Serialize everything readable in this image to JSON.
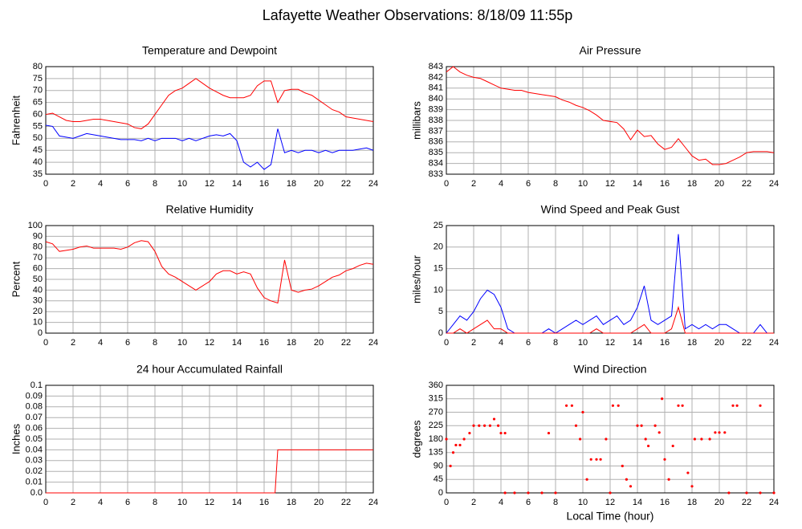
{
  "title": "Lafayette Weather Observations: 8/18/09 11:55p",
  "chart_data": [
    {
      "type": "line",
      "title": "Temperature and Dewpoint",
      "ylabel": "Fahrenheit",
      "x": [
        0,
        0.5,
        1,
        1.5,
        2,
        2.5,
        3,
        3.5,
        4,
        4.5,
        5,
        5.5,
        6,
        6.5,
        7,
        7.5,
        8,
        8.5,
        9,
        9.5,
        10,
        10.5,
        11,
        11.5,
        12,
        12.5,
        13,
        13.5,
        14,
        14.5,
        15,
        15.5,
        16,
        16.5,
        17,
        17.5,
        18,
        18.5,
        19,
        19.5,
        20,
        20.5,
        21,
        21.5,
        22,
        22.5,
        23,
        23.5,
        24
      ],
      "series": [
        {
          "color": "#ff0000",
          "values": [
            60,
            60.5,
            59,
            57.5,
            57,
            57,
            57.5,
            58,
            58,
            57.5,
            57,
            56.5,
            56,
            54.5,
            54,
            56,
            60,
            64,
            68,
            70,
            71,
            73,
            75,
            73,
            71,
            69.5,
            68,
            67,
            67,
            67,
            68,
            72,
            74,
            74,
            65,
            70,
            70.5,
            70.5,
            69,
            68,
            66,
            64,
            62,
            61,
            59,
            58.5,
            58,
            57.5,
            57
          ]
        },
        {
          "color": "#0000ff",
          "values": [
            55.5,
            55,
            51,
            50.5,
            50,
            51,
            52,
            51.5,
            51,
            50.5,
            50,
            49.5,
            49.5,
            49.5,
            49,
            50,
            49,
            50,
            50,
            50,
            49,
            50,
            49,
            50,
            51,
            51.5,
            51,
            52,
            49,
            40,
            38,
            40,
            37,
            39,
            54,
            44,
            45,
            44,
            45,
            45,
            44,
            45,
            44,
            45,
            45,
            45,
            45.5,
            46,
            45
          ]
        }
      ],
      "xlim": [
        0,
        24
      ],
      "xticks": [
        0,
        2,
        4,
        6,
        8,
        10,
        12,
        14,
        16,
        18,
        20,
        22,
        24
      ],
      "ylim": [
        35,
        80
      ],
      "yticks": [
        35,
        40,
        45,
        50,
        55,
        60,
        65,
        70,
        75,
        80
      ],
      "grid": true
    },
    {
      "type": "line",
      "title": "Air Pressure",
      "ylabel": "millibars",
      "x": [
        0,
        0.5,
        1,
        1.5,
        2,
        2.5,
        3,
        3.5,
        4,
        4.5,
        5,
        5.5,
        6,
        6.5,
        7,
        7.5,
        8,
        8.5,
        9,
        9.5,
        10,
        10.5,
        11,
        11.5,
        12,
        12.5,
        13,
        13.5,
        14,
        14.5,
        15,
        15.5,
        16,
        16.5,
        17,
        17.5,
        18,
        18.5,
        19,
        19.5,
        20,
        20.5,
        21,
        21.5,
        22,
        22.5,
        23,
        23.5,
        24
      ],
      "series": [
        {
          "color": "#ff0000",
          "values": [
            842.5,
            843,
            842.5,
            842.2,
            842,
            841.9,
            841.6,
            841.3,
            841,
            840.9,
            840.8,
            840.8,
            840.6,
            840.5,
            840.4,
            840.3,
            840.2,
            839.9,
            839.7,
            839.4,
            839.2,
            838.9,
            838.5,
            838,
            837.9,
            837.8,
            837.2,
            836.2,
            837.1,
            836.5,
            836.6,
            835.8,
            835.3,
            835.5,
            836.3,
            835.5,
            834.7,
            834.3,
            834.4,
            833.9,
            833.9,
            834,
            834.3,
            834.6,
            835,
            835.1,
            835.1,
            835.1,
            835
          ]
        }
      ],
      "xlim": [
        0,
        24
      ],
      "xticks": [
        0,
        2,
        4,
        6,
        8,
        10,
        12,
        14,
        16,
        18,
        20,
        22,
        24
      ],
      "ylim": [
        833,
        843
      ],
      "yticks": [
        833,
        834,
        835,
        836,
        837,
        838,
        839,
        840,
        841,
        842,
        843
      ],
      "grid": true
    },
    {
      "type": "line",
      "title": "Relative Humidity",
      "ylabel": "Percent",
      "x": [
        0,
        0.5,
        1,
        1.5,
        2,
        2.5,
        3,
        3.5,
        4,
        4.5,
        5,
        5.5,
        6,
        6.5,
        7,
        7.5,
        8,
        8.5,
        9,
        9.5,
        10,
        10.5,
        11,
        11.5,
        12,
        12.5,
        13,
        13.5,
        14,
        14.5,
        15,
        15.5,
        16,
        16.5,
        17,
        17.5,
        18,
        18.5,
        19,
        19.5,
        20,
        20.5,
        21,
        21.5,
        22,
        22.5,
        23,
        23.5,
        24
      ],
      "series": [
        {
          "color": "#ff0000",
          "values": [
            85,
            83,
            76,
            77,
            78,
            80,
            81,
            79,
            79,
            79,
            79,
            78,
            80,
            84,
            86,
            85,
            76,
            62,
            55,
            52,
            48,
            44,
            40,
            44,
            48,
            55,
            58,
            58,
            55,
            57,
            55,
            42,
            33,
            30,
            28,
            68,
            40,
            38,
            40,
            41,
            44,
            48,
            52,
            54,
            58,
            60,
            63,
            65,
            64
          ]
        }
      ],
      "xlim": [
        0,
        24
      ],
      "xticks": [
        0,
        2,
        4,
        6,
        8,
        10,
        12,
        14,
        16,
        18,
        20,
        22,
        24
      ],
      "ylim": [
        0,
        100
      ],
      "yticks": [
        0,
        10,
        20,
        30,
        40,
        50,
        60,
        70,
        80,
        90,
        100
      ],
      "grid": true
    },
    {
      "type": "line",
      "title": "Wind Speed and Peak Gust",
      "ylabel": "miles/hour",
      "x": [
        0,
        0.5,
        1,
        1.5,
        2,
        2.5,
        3,
        3.5,
        4,
        4.5,
        5,
        5.5,
        6,
        6.5,
        7,
        7.5,
        8,
        8.5,
        9,
        9.5,
        10,
        10.5,
        11,
        11.5,
        12,
        12.5,
        13,
        13.5,
        14,
        14.5,
        15,
        15.5,
        16,
        16.5,
        17,
        17.5,
        18,
        18.5,
        19,
        19.5,
        20,
        20.5,
        21,
        21.5,
        22,
        22.5,
        23,
        23.5,
        24
      ],
      "series": [
        {
          "color": "#0000ff",
          "values": [
            0,
            2,
            4,
            3,
            5,
            8,
            10,
            9,
            6,
            1,
            0,
            0,
            0,
            0,
            0,
            1,
            0,
            1,
            2,
            3,
            2,
            3,
            4,
            2,
            3,
            4,
            2,
            3,
            6,
            11,
            3,
            2,
            3,
            4,
            23,
            1,
            2,
            1,
            2,
            1,
            2,
            2,
            1,
            0,
            0,
            0,
            2,
            0,
            0
          ]
        },
        {
          "color": "#ff0000",
          "values": [
            0,
            0,
            1,
            0,
            1,
            2,
            3,
            1,
            1,
            0,
            0,
            0,
            0,
            0,
            0,
            0,
            0,
            0,
            0,
            0,
            0,
            0,
            1,
            0,
            0,
            0,
            0,
            0,
            1,
            2,
            0,
            0,
            0,
            1,
            6,
            0,
            0,
            0,
            0,
            0,
            0,
            0,
            0,
            0,
            0,
            0,
            0,
            0,
            0
          ]
        }
      ],
      "xlim": [
        0,
        24
      ],
      "xticks": [
        0,
        2,
        4,
        6,
        8,
        10,
        12,
        14,
        16,
        18,
        20,
        22,
        24
      ],
      "ylim": [
        0,
        25
      ],
      "yticks": [
        0,
        5,
        10,
        15,
        20,
        25
      ],
      "grid": true
    },
    {
      "type": "line",
      "title": "24 hour Accumulated Rainfall",
      "ylabel": "Inches",
      "x": [
        0,
        16.8,
        17,
        24
      ],
      "series": [
        {
          "color": "#ff0000",
          "values": [
            0,
            0,
            0.04,
            0.04
          ]
        }
      ],
      "xlim": [
        0,
        24
      ],
      "xticks": [
        0,
        2,
        4,
        6,
        8,
        10,
        12,
        14,
        16,
        18,
        20,
        22,
        24
      ],
      "ylim": [
        0,
        0.1
      ],
      "yticks": [
        {
          "value": 0,
          "label": "0.0"
        },
        0.01,
        0.02,
        0.03,
        0.04,
        0.05,
        0.06,
        0.07,
        0.08,
        0.09,
        0.1
      ],
      "grid": true
    },
    {
      "type": "scatter",
      "title": "Wind Direction",
      "ylabel": "degrees",
      "xlabel": "Local Time (hour)",
      "x": [
        0,
        0.3,
        0.5,
        0.7,
        1,
        1.3,
        1.7,
        2,
        2.4,
        2.8,
        3.2,
        3.5,
        3.8,
        4,
        4.3,
        4.3,
        5,
        6,
        7,
        7.5,
        8,
        8.8,
        9.2,
        9.5,
        9.8,
        10,
        10.3,
        10.6,
        11,
        11.3,
        11.7,
        12,
        12.2,
        12.6,
        12.9,
        13.2,
        13.5,
        14,
        14.3,
        14.6,
        14.8,
        15.3,
        15.6,
        15.8,
        16,
        16.3,
        16.6,
        17,
        17.3,
        17.7,
        18,
        18.2,
        18.7,
        19.3,
        19.7,
        20,
        20.4,
        20.7,
        21,
        21.3,
        22,
        23,
        23,
        24
      ],
      "values": [
        180,
        90,
        135,
        160,
        160,
        180,
        200,
        225,
        225,
        225,
        225,
        247,
        225,
        200,
        200,
        0,
        0,
        0,
        0,
        200,
        0,
        292,
        292,
        225,
        180,
        270,
        45,
        112,
        112,
        112,
        180,
        0,
        292,
        292,
        90,
        45,
        22,
        225,
        225,
        180,
        157,
        225,
        202,
        315,
        112,
        45,
        157,
        292,
        292,
        67,
        22,
        180,
        180,
        180,
        202,
        202,
        202,
        0,
        292,
        292,
        0,
        292,
        0,
        0
      ],
      "color": "#ff0000",
      "xlim": [
        0,
        24
      ],
      "xticks": [
        0,
        2,
        4,
        6,
        8,
        10,
        12,
        14,
        16,
        18,
        20,
        22,
        24
      ],
      "ylim": [
        0,
        360
      ],
      "yticks": [
        0,
        45,
        90,
        135,
        180,
        225,
        270,
        315,
        360
      ],
      "grid": true
    }
  ]
}
